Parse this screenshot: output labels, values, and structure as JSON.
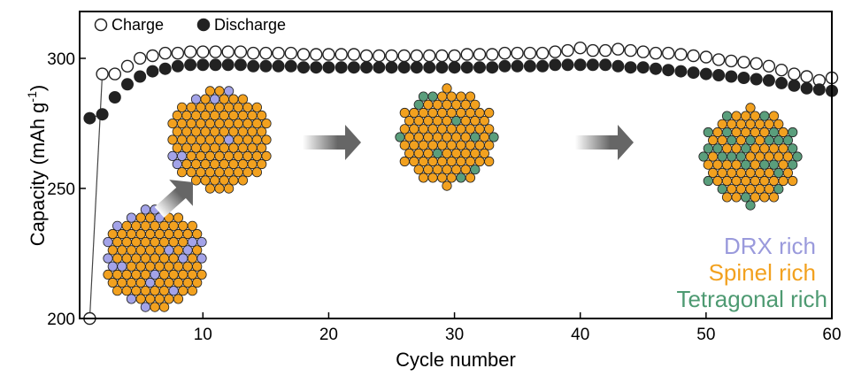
{
  "chart_data": {
    "type": "scatter",
    "title": "",
    "xlabel": "Cycle number",
    "ylabel_main": "Capacity (mAh g",
    "ylabel_sup": "-1",
    "ylabel_close": ")",
    "xlim": [
      0.2,
      60
    ],
    "ylim": [
      200,
      318
    ],
    "xticks": [
      10,
      20,
      30,
      40,
      50,
      60
    ],
    "yticks": [
      200,
      250,
      300
    ],
    "grid": false,
    "legend_position": "top-left",
    "x": [
      1,
      2,
      3,
      4,
      5,
      6,
      7,
      8,
      9,
      10,
      11,
      12,
      13,
      14,
      15,
      16,
      17,
      18,
      19,
      20,
      21,
      22,
      23,
      24,
      25,
      26,
      27,
      28,
      29,
      30,
      31,
      32,
      33,
      34,
      35,
      36,
      37,
      38,
      39,
      40,
      41,
      42,
      43,
      44,
      45,
      46,
      47,
      48,
      49,
      50,
      51,
      52,
      53,
      54,
      55,
      56,
      57,
      58,
      59,
      60
    ],
    "series": [
      {
        "name": "Charge",
        "marker": "open-circle",
        "color": "#222222",
        "values": [
          200,
          294,
          294,
          297,
          300,
          301,
          302,
          302,
          302.5,
          302.5,
          302.5,
          302.5,
          302.5,
          302,
          302,
          302,
          302,
          301.5,
          301.5,
          301.5,
          301.5,
          301.5,
          301,
          301,
          301,
          301,
          301,
          301,
          301,
          301,
          301.5,
          301.5,
          301.5,
          302,
          302,
          302,
          302,
          302.5,
          303,
          304,
          303,
          303,
          303.5,
          303,
          302.5,
          302,
          302,
          301.5,
          301,
          300.5,
          299.5,
          299,
          298.5,
          298,
          297,
          295.5,
          294,
          293,
          291.5,
          292.5
        ]
      },
      {
        "name": "Discharge",
        "marker": "filled-circle",
        "color": "#222222",
        "values": [
          277,
          278.5,
          285,
          290,
          293,
          295,
          296,
          297,
          297.5,
          297.5,
          297.5,
          297.5,
          297.5,
          297,
          297,
          297,
          297,
          296.5,
          296.5,
          296.5,
          296.5,
          296.5,
          296.5,
          296.5,
          296.5,
          296.5,
          296.5,
          296.5,
          296.5,
          296.5,
          296.5,
          296.5,
          296.5,
          297,
          297,
          297,
          297,
          297.5,
          297.5,
          297.5,
          297.5,
          297.5,
          297,
          296.5,
          296.5,
          296,
          295.5,
          295,
          294.5,
          294,
          293.5,
          293,
          292.5,
          292,
          291.5,
          290.5,
          289.5,
          288.5,
          288,
          287.5
        ]
      }
    ],
    "phase_labels": [
      {
        "text": "DRX rich",
        "color": "#9a9adc"
      },
      {
        "text": "Spinel rich",
        "color": "#f2a11f"
      },
      {
        "text": "Tetragonal rich",
        "color": "#4e9a72"
      }
    ],
    "particle_colors": {
      "spinel": "#f2a11f",
      "drx": "#a3a3e8",
      "tetragonal": "#5a9e7c",
      "outline": "#222222",
      "arrow": "#666666"
    }
  }
}
